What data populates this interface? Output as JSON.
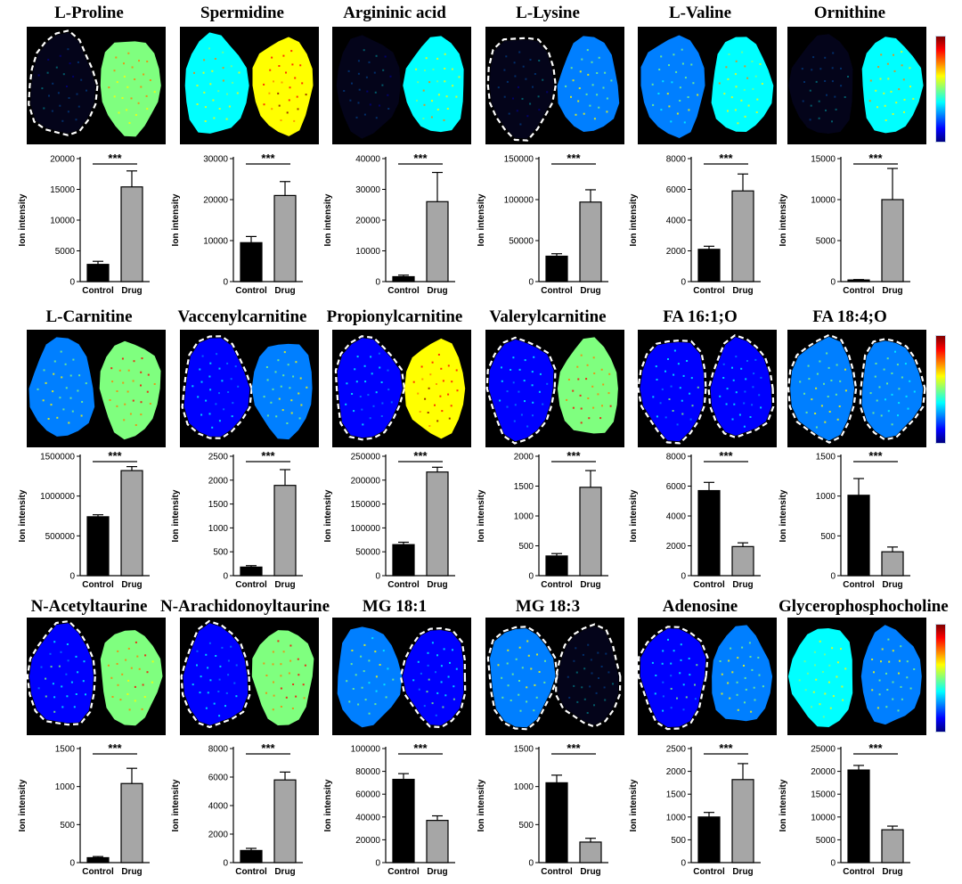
{
  "colors": {
    "control_bar": "#000000",
    "drug_bar": "#a6a6a6",
    "background": "#ffffff",
    "image_bg": "#000000",
    "dash": "#ffffff"
  },
  "colormap": [
    "#00007f",
    "#0000ff",
    "#007fff",
    "#00ffff",
    "#7fff7f",
    "#ffff00",
    "#ff7f00",
    "#ff0000",
    "#7f0000"
  ],
  "panels": [
    {
      "title": "L-Proline",
      "control_outlined": true,
      "drug_outlined": false,
      "chart_data": {
        "type": "bar",
        "categories": [
          "Control",
          "Drug"
        ],
        "values": [
          2800,
          15400
        ],
        "errors": [
          500,
          2600
        ],
        "ylabel": "Ion intensity",
        "yticks": [
          0,
          5000,
          10000,
          15000,
          20000
        ],
        "ylim": [
          0,
          20000
        ],
        "significance": "***"
      }
    },
    {
      "title": "Spermidine",
      "control_outlined": false,
      "drug_outlined": false,
      "chart_data": {
        "type": "bar",
        "categories": [
          "Control",
          "Drug"
        ],
        "values": [
          9500,
          21000
        ],
        "errors": [
          1500,
          3400
        ],
        "ylabel": "Ion intensity",
        "yticks": [
          0,
          10000,
          20000,
          30000
        ],
        "ylim": [
          0,
          30000
        ],
        "significance": "***"
      }
    },
    {
      "title": "Argininic acid",
      "control_outlined": false,
      "drug_outlined": false,
      "chart_data": {
        "type": "bar",
        "categories": [
          "Control",
          "Drug"
        ],
        "values": [
          1600,
          26000
        ],
        "errors": [
          500,
          9500
        ],
        "ylabel": "Ion intensity",
        "yticks": [
          0,
          10000,
          20000,
          30000,
          40000
        ],
        "ylim": [
          0,
          40000
        ],
        "significance": "***"
      }
    },
    {
      "title": "L-Lysine",
      "control_outlined": true,
      "drug_outlined": false,
      "chart_data": {
        "type": "bar",
        "categories": [
          "Control",
          "Drug"
        ],
        "values": [
          31000,
          97000
        ],
        "errors": [
          3000,
          15000
        ],
        "ylabel": "Ion intensity",
        "yticks": [
          0,
          50000,
          100000,
          150000
        ],
        "ylim": [
          0,
          150000
        ],
        "significance": "***"
      }
    },
    {
      "title": "L-Valine",
      "control_outlined": false,
      "drug_outlined": false,
      "chart_data": {
        "type": "bar",
        "categories": [
          "Control",
          "Drug"
        ],
        "values": [
          2100,
          5900
        ],
        "errors": [
          200,
          1100
        ],
        "ylabel": "Ion intensity",
        "yticks": [
          0,
          2000,
          4000,
          6000,
          8000
        ],
        "ylim": [
          0,
          8000
        ],
        "significance": "***"
      }
    },
    {
      "title": "Ornithine",
      "control_outlined": false,
      "drug_outlined": false,
      "chart_data": {
        "type": "bar",
        "categories": [
          "Control",
          "Drug"
        ],
        "values": [
          200,
          10000
        ],
        "errors": [
          50,
          3800
        ],
        "ylabel": "Ion intensity",
        "yticks": [
          0,
          5000,
          10000,
          15000
        ],
        "ylim": [
          0,
          15000
        ],
        "significance": "***"
      }
    },
    {
      "title": "L-Carnitine",
      "control_outlined": false,
      "drug_outlined": false,
      "chart_data": {
        "type": "bar",
        "categories": [
          "Control",
          "Drug"
        ],
        "values": [
          740000,
          1320000
        ],
        "errors": [
          25000,
          50000
        ],
        "ylabel": "Ion intensity",
        "yticks": [
          0,
          500000,
          1000000,
          1500000
        ],
        "ylim": [
          0,
          1500000
        ],
        "significance": "***"
      }
    },
    {
      "title": "Vaccenylcarnitine",
      "control_outlined": true,
      "drug_outlined": false,
      "chart_data": {
        "type": "bar",
        "categories": [
          "Control",
          "Drug"
        ],
        "values": [
          180,
          1890
        ],
        "errors": [
          30,
          330
        ],
        "ylabel": "Ion intensity",
        "yticks": [
          0,
          500,
          1000,
          1500,
          2000,
          2500
        ],
        "ylim": [
          0,
          2500
        ],
        "significance": "***"
      }
    },
    {
      "title": "Propionylcarnitine",
      "control_outlined": true,
      "drug_outlined": false,
      "chart_data": {
        "type": "bar",
        "categories": [
          "Control",
          "Drug"
        ],
        "values": [
          65000,
          217000
        ],
        "errors": [
          5000,
          10000
        ],
        "ylabel": "Ion intensity",
        "yticks": [
          0,
          50000,
          100000,
          150000,
          200000,
          250000
        ],
        "ylim": [
          0,
          250000
        ],
        "significance": "***"
      }
    },
    {
      "title": "Valerylcarnitine",
      "control_outlined": true,
      "drug_outlined": false,
      "chart_data": {
        "type": "bar",
        "categories": [
          "Control",
          "Drug"
        ],
        "values": [
          330,
          1480
        ],
        "errors": [
          40,
          280
        ],
        "ylabel": "Ion intensity",
        "yticks": [
          0,
          500,
          1000,
          1500,
          2000
        ],
        "ylim": [
          0,
          2000
        ],
        "significance": "***"
      }
    },
    {
      "title": "FA 16:1;O",
      "control_outlined": true,
      "drug_outlined": true,
      "chart_data": {
        "type": "bar",
        "categories": [
          "Control",
          "Drug"
        ],
        "values": [
          5700,
          1950
        ],
        "errors": [
          550,
          250
        ],
        "ylabel": "Ion intensity",
        "yticks": [
          0,
          2000,
          4000,
          6000,
          8000
        ],
        "ylim": [
          0,
          8000
        ],
        "significance": "***"
      }
    },
    {
      "title": "FA 18:4;O",
      "control_outlined": true,
      "drug_outlined": true,
      "chart_data": {
        "type": "bar",
        "categories": [
          "Control",
          "Drug"
        ],
        "values": [
          1010,
          300
        ],
        "errors": [
          210,
          60
        ],
        "ylabel": "Ion intensity",
        "yticks": [
          0,
          500,
          1000,
          1500
        ],
        "ylim": [
          0,
          1500
        ],
        "significance": "***"
      }
    },
    {
      "title": "N-Acetyltaurine",
      "control_outlined": true,
      "drug_outlined": false,
      "chart_data": {
        "type": "bar",
        "categories": [
          "Control",
          "Drug"
        ],
        "values": [
          65,
          1040
        ],
        "errors": [
          15,
          200
        ],
        "ylabel": "Ion intensity",
        "yticks": [
          0,
          500,
          1000,
          1500
        ],
        "ylim": [
          0,
          1500
        ],
        "significance": "***"
      }
    },
    {
      "title": "N-Arachidonoyltaurine",
      "control_outlined": true,
      "drug_outlined": false,
      "chart_data": {
        "type": "bar",
        "categories": [
          "Control",
          "Drug"
        ],
        "values": [
          850,
          5800
        ],
        "errors": [
          150,
          550
        ],
        "ylabel": "Ion intensity",
        "yticks": [
          0,
          2000,
          4000,
          6000,
          8000
        ],
        "ylim": [
          0,
          8000
        ],
        "significance": "***"
      }
    },
    {
      "title": "MG 18:1",
      "control_outlined": false,
      "drug_outlined": true,
      "chart_data": {
        "type": "bar",
        "categories": [
          "Control",
          "Drug"
        ],
        "values": [
          73000,
          37000
        ],
        "errors": [
          5000,
          4000
        ],
        "ylabel": "Ion intensity",
        "yticks": [
          0,
          20000,
          40000,
          60000,
          80000,
          100000
        ],
        "ylim": [
          0,
          100000
        ],
        "significance": "***"
      }
    },
    {
      "title": "MG 18:3",
      "control_outlined": true,
      "drug_outlined": true,
      "chart_data": {
        "type": "bar",
        "categories": [
          "Control",
          "Drug"
        ],
        "values": [
          1050,
          270
        ],
        "errors": [
          100,
          50
        ],
        "ylabel": "Ion intensity",
        "yticks": [
          0,
          500,
          1000,
          1500
        ],
        "ylim": [
          0,
          1500
        ],
        "significance": "***"
      }
    },
    {
      "title": "Adenosine",
      "control_outlined": true,
      "drug_outlined": false,
      "chart_data": {
        "type": "bar",
        "categories": [
          "Control",
          "Drug"
        ],
        "values": [
          1000,
          1820
        ],
        "errors": [
          100,
          350
        ],
        "ylabel": "Ion intensity",
        "yticks": [
          0,
          500,
          1000,
          1500,
          2000,
          2500
        ],
        "ylim": [
          0,
          2500
        ],
        "significance": "***"
      }
    },
    {
      "title": "Glycerophosphocholine",
      "control_outlined": false,
      "drug_outlined": false,
      "chart_data": {
        "type": "bar",
        "categories": [
          "Control",
          "Drug"
        ],
        "values": [
          20300,
          7200
        ],
        "errors": [
          1000,
          800
        ],
        "ylabel": "Ion intensity",
        "yticks": [
          0,
          5000,
          10000,
          15000,
          20000,
          25000
        ],
        "ylim": [
          0,
          25000
        ],
        "significance": "***"
      }
    }
  ]
}
